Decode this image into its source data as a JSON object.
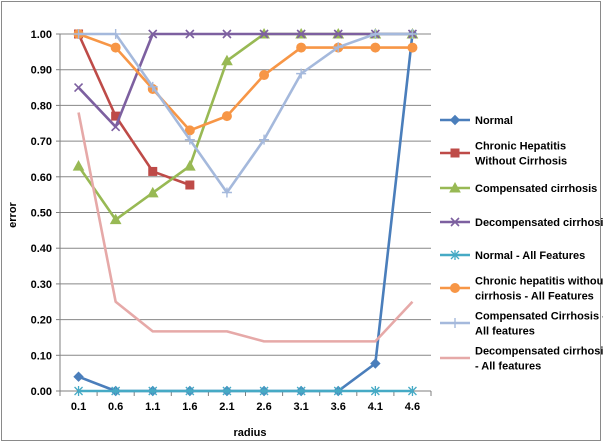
{
  "chart_data": {
    "type": "line",
    "title": "",
    "xlabel": "radius",
    "ylabel": "error",
    "ylim": [
      0,
      1
    ],
    "y_ticks": [
      "0.00",
      "0.10",
      "0.20",
      "0.30",
      "0.40",
      "0.50",
      "0.60",
      "0.70",
      "0.80",
      "0.90",
      "1.00"
    ],
    "categories": [
      "0.1",
      "0.6",
      "1.1",
      "1.6",
      "2.1",
      "2.6",
      "3.1",
      "3.6",
      "4.1",
      "4.6"
    ],
    "grid": true,
    "legend_position": "right",
    "series": [
      {
        "name": "Normal",
        "color": "#4a7ebb",
        "marker": "diamond",
        "values": [
          0.04,
          0.0,
          0.0,
          0.0,
          0.0,
          0.0,
          0.0,
          0.0,
          0.077,
          1.0
        ]
      },
      {
        "name": "Chronic Hepatitis Without Cirrhosis",
        "color": "#be4b48",
        "marker": "square",
        "values": [
          1.0,
          0.77,
          0.615,
          0.577,
          null,
          null,
          null,
          null,
          null,
          null
        ]
      },
      {
        "name": "Compensated cirrhosis",
        "color": "#98b954",
        "marker": "triangle",
        "values": [
          0.63,
          0.48,
          0.555,
          0.63,
          0.925,
          1.0,
          1.0,
          1.0,
          1.0,
          1.0
        ]
      },
      {
        "name": "Decompensated cirrhosis",
        "color": "#7d60a0",
        "marker": "x",
        "values": [
          0.85,
          0.74,
          1.0,
          1.0,
          1.0,
          1.0,
          1.0,
          1.0,
          1.0,
          1.0
        ]
      },
      {
        "name": "Normal - All Features",
        "color": "#46aac5",
        "marker": "asterisk",
        "values": [
          0.0,
          0.0,
          0.0,
          0.0,
          0.0,
          0.0,
          0.0,
          0.0,
          0.0,
          0.0
        ]
      },
      {
        "name": "Chronic hepatitis without cirrhosis - All Features",
        "color": "#f79646",
        "marker": "circle",
        "values": [
          1.0,
          0.962,
          0.846,
          0.73,
          0.77,
          0.885,
          0.962,
          0.962,
          0.962,
          0.962
        ]
      },
      {
        "name": "Compensated Cirrhosis - All features",
        "color": "#a5b9dc",
        "marker": "plus",
        "values": [
          1.0,
          1.0,
          0.852,
          0.704,
          0.556,
          0.704,
          0.889,
          0.963,
          1.0,
          1.0
        ]
      },
      {
        "name": "Decompensated cirrhosis - All features",
        "color": "#e6a9a8",
        "marker": "none",
        "values": [
          0.78,
          0.25,
          0.167,
          0.167,
          0.167,
          0.139,
          0.139,
          0.139,
          0.139,
          0.25
        ]
      }
    ],
    "legend_lines": [
      [
        "Normal"
      ],
      [
        "Chronic Hepatitis",
        "Without Cirrhosis"
      ],
      [
        "Compensated cirrhosis"
      ],
      [
        "Decompensated cirrhosis"
      ],
      [
        "Normal - All Features"
      ],
      [
        "Chronic hepatitis without",
        "cirrhosis - All Features"
      ],
      [
        "Compensated Cirrhosis -",
        "All features"
      ],
      [
        "Decompensated cirrhosis",
        "- All features"
      ]
    ]
  }
}
